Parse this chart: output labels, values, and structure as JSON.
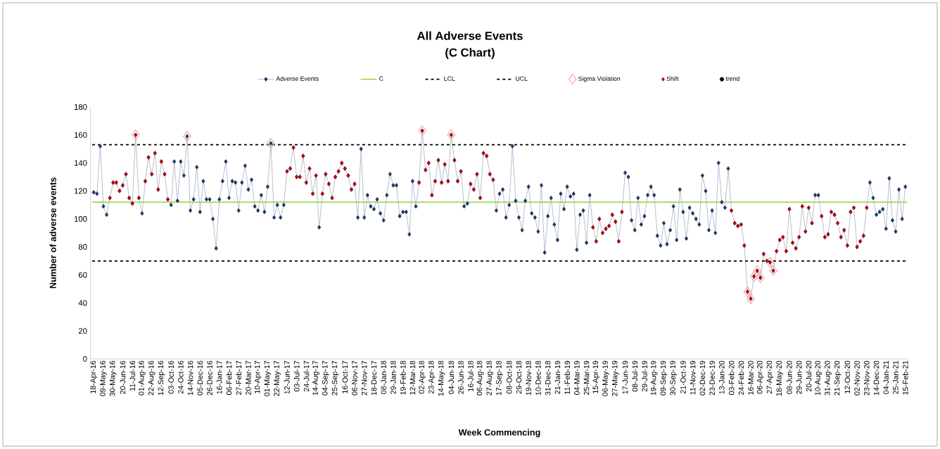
{
  "chart_data": {
    "type": "line",
    "title": "All Adverse Events",
    "subtitle": "(C Chart)",
    "xlabel": "Week Commencing",
    "ylabel": "Number of adverse events",
    "categories": [
      "18-Apr-16",
      null,
      null,
      "09-May-16",
      null,
      null,
      "30-May-16",
      null,
      null,
      "20-Jun-16",
      null,
      null,
      "11-Jul-16",
      null,
      null,
      "01-Aug-16",
      null,
      null,
      "22-Aug-16",
      null,
      null,
      "12-Sep-16",
      null,
      null,
      "03-Oct-16",
      null,
      null,
      "24-Oct-16",
      null,
      null,
      "14-Nov-16",
      null,
      null,
      "05-Dec-16",
      null,
      null,
      "26-Dec-16",
      null,
      null,
      "16-Jan-17",
      null,
      null,
      "06-Feb-17",
      null,
      null,
      "27-Feb-17",
      null,
      null,
      "20-Mar-17",
      null,
      null,
      "10-Apr-17",
      null,
      null,
      "01-May-17",
      null,
      null,
      "22-May-17",
      null,
      null,
      "12-Jun-17",
      null,
      null,
      "03-Jul-17",
      null,
      null,
      "24-Jul-17",
      null,
      null,
      "14-Aug-17",
      null,
      null,
      "04-Sep-17",
      null,
      null,
      "25-Sep-17",
      null,
      null,
      "16-Oct-17",
      null,
      null,
      "06-Nov-17",
      null,
      null,
      "27-Nov-17",
      null,
      null,
      "18-Dec-17",
      null,
      null,
      "08-Jan-18",
      null,
      null,
      "29-Jan-18",
      null,
      null,
      "19-Feb-18",
      null,
      null,
      "12-Mar-18",
      null,
      null,
      "02-Apr-18",
      null,
      null,
      "23-Apr-18",
      null,
      null,
      "14-May-18",
      null,
      null,
      "04-Jun-18",
      null,
      null,
      "26-Jun-18",
      null,
      null,
      "16-Jul-18",
      null,
      null,
      "06-Aug-18",
      null,
      null,
      "27-Aug-18",
      null,
      null,
      "17-Sep-18",
      null,
      null,
      "08-Oct-18",
      null,
      null,
      "29-Oct-18",
      null,
      null,
      "19-Nov-18",
      null,
      null,
      "10-Dec-18",
      null,
      null,
      "31-Dec-18",
      null,
      null,
      "21-Jan-19",
      null,
      null,
      "11-Feb-19",
      null,
      null,
      "04-Mar-19",
      null,
      null,
      "25-Mar-19",
      null,
      null,
      "15-Apr-19",
      null,
      null,
      "06-May-19",
      null,
      null,
      "27-May-19",
      null,
      null,
      "17-Jun-19",
      null,
      null,
      "08-Jul-19",
      null,
      null,
      "29-Jul-19",
      null,
      null,
      "19-Aug-19",
      null,
      null,
      "09-Sep-19",
      null,
      null,
      "30-Sep-19",
      null,
      null,
      "21-Oct-19",
      null,
      null,
      "11-Nov-19",
      null,
      null,
      "02-Dec-19",
      null,
      null,
      "23-Dec-19",
      null,
      null,
      "13-Jan-20",
      null,
      null,
      "03-Feb-20",
      null,
      null,
      "24-Feb-20",
      null,
      null,
      "16-Mar-20",
      null,
      null,
      "06-Apr-20",
      null,
      null,
      "27-Apr-20",
      null,
      null,
      "18-May-20",
      null,
      null,
      "08-Jun-20",
      null,
      null,
      "29-Jun-20",
      null,
      null,
      "20-Jul-20",
      null,
      null,
      "10-Aug-20",
      null,
      null,
      "31-Aug-20",
      null,
      null,
      "21-Sep-20",
      null,
      null,
      "12-Oct-20",
      null,
      null,
      "02-Nov-20",
      null,
      null,
      "23-Nov-20",
      null,
      null,
      "14-Dec-20",
      null,
      null,
      "04-Jan-21",
      null,
      null,
      "25-Jan-21",
      null,
      null,
      "15-Feb-21"
    ],
    "series": [
      {
        "name": "Adverse Events",
        "marker": "diamond",
        "color": "#1f3864",
        "values": [
          119,
          118,
          152,
          109,
          103,
          115,
          126,
          126,
          120,
          124,
          132,
          115,
          111,
          160,
          115,
          104,
          127,
          144,
          132,
          147,
          121,
          141,
          132,
          114,
          110,
          141,
          113,
          141,
          131,
          159,
          106,
          114,
          137,
          105,
          127,
          114,
          114,
          100,
          79,
          114,
          127,
          141,
          115,
          127,
          126,
          106,
          126,
          138,
          121,
          128,
          109,
          106,
          117,
          105,
          123,
          154,
          101,
          110,
          101,
          110,
          134,
          136,
          151,
          130,
          130,
          145,
          126,
          136,
          118,
          131,
          94,
          118,
          132,
          125,
          115,
          130,
          134,
          140,
          136,
          131,
          121,
          125,
          101,
          150,
          101,
          117,
          109,
          107,
          114,
          104,
          99,
          117,
          132,
          124,
          124,
          102,
          105,
          105,
          89,
          127,
          109,
          126,
          163,
          135,
          140,
          117,
          127,
          142,
          126,
          139,
          127,
          160,
          142,
          127,
          134,
          109,
          111,
          125,
          121,
          132,
          115,
          147,
          145,
          132,
          128,
          106,
          118,
          121,
          101,
          110,
          152,
          113,
          101,
          92,
          113,
          123,
          104,
          101,
          91,
          124,
          76,
          102,
          115,
          96,
          85,
          118,
          107,
          123,
          116,
          118,
          78,
          103,
          106,
          83,
          117,
          94,
          84,
          100,
          90,
          93,
          95,
          103,
          98,
          84,
          105,
          133,
          130,
          99,
          92,
          115,
          96,
          102,
          117,
          123,
          117,
          88,
          81,
          97,
          82,
          92,
          109,
          85,
          121,
          105,
          86,
          108,
          104,
          100,
          96,
          131,
          120,
          92,
          106,
          90,
          140,
          112,
          108,
          136,
          106,
          97,
          95,
          96,
          81,
          48,
          43,
          59,
          63,
          58,
          75,
          70,
          69,
          63,
          77,
          85,
          87,
          77,
          107,
          83,
          79,
          87,
          109,
          91,
          108,
          97,
          117,
          117,
          102,
          87,
          89,
          105,
          103,
          97,
          87,
          92,
          81,
          105,
          108,
          80,
          84,
          88,
          108,
          126,
          115,
          103,
          105,
          107,
          93,
          129,
          99,
          91,
          121,
          100,
          123
        ]
      },
      {
        "name": "Sigma Violation",
        "type": "scatter",
        "marker": "diamond",
        "color": "#f2a6a6",
        "values": [
          null,
          null,
          null,
          null,
          null,
          null,
          null,
          null,
          null,
          null,
          null,
          null,
          null,
          160,
          null,
          null,
          null,
          null,
          null,
          null,
          null,
          null,
          null,
          null,
          null,
          null,
          null,
          null,
          null,
          159,
          null,
          null,
          null,
          null,
          null,
          null,
          null,
          null,
          null,
          null,
          null,
          null,
          null,
          null,
          null,
          null,
          null,
          null,
          null,
          null,
          null,
          null,
          null,
          null,
          null,
          154,
          null,
          null,
          null,
          null,
          null,
          null,
          null,
          null,
          null,
          null,
          null,
          null,
          null,
          null,
          null,
          null,
          null,
          null,
          null,
          null,
          null,
          null,
          null,
          null,
          null,
          null,
          null,
          null,
          null,
          null,
          null,
          null,
          null,
          null,
          null,
          null,
          null,
          null,
          null,
          null,
          null,
          null,
          null,
          null,
          null,
          null,
          163,
          null,
          null,
          null,
          null,
          null,
          null,
          null,
          null,
          160,
          null,
          null,
          null,
          null,
          null,
          null,
          null,
          null,
          null,
          null,
          null,
          null,
          null,
          null,
          null,
          null,
          null,
          null,
          null,
          null,
          null,
          null,
          null,
          null,
          null,
          null,
          null,
          null,
          null,
          null,
          null,
          null,
          null,
          null,
          null,
          null,
          null,
          null,
          null,
          null,
          null,
          null,
          null,
          null,
          null,
          null,
          null,
          null,
          null,
          null,
          null,
          null,
          null,
          null,
          null,
          null,
          null,
          null,
          null,
          null,
          null,
          null,
          null,
          null,
          null,
          null,
          null,
          null,
          null,
          null,
          null,
          null,
          null,
          null,
          null,
          null,
          null,
          null,
          null,
          null,
          null,
          null,
          null,
          null,
          null,
          null,
          null,
          null,
          null,
          null,
          null,
          48,
          43,
          59,
          63,
          58,
          null,
          null,
          69,
          63,
          null,
          null,
          null,
          null,
          null,
          null,
          null,
          null,
          null,
          null,
          null,
          null,
          null,
          null,
          null,
          null,
          null,
          null,
          null,
          null,
          null,
          null,
          null,
          null,
          null,
          null,
          null,
          null,
          null,
          null,
          null,
          null,
          null,
          null,
          null,
          null,
          null,
          null,
          null,
          null,
          null
        ]
      },
      {
        "name": "Shift",
        "type": "scatter",
        "marker": "diamond",
        "color": "#c00000",
        "values": [
          null,
          null,
          null,
          null,
          null,
          115,
          126,
          126,
          120,
          124,
          132,
          115,
          111,
          160,
          115,
          null,
          127,
          144,
          132,
          147,
          121,
          141,
          132,
          114,
          null,
          null,
          null,
          null,
          null,
          null,
          null,
          null,
          null,
          null,
          null,
          null,
          null,
          null,
          null,
          null,
          null,
          null,
          null,
          null,
          null,
          null,
          null,
          null,
          null,
          null,
          null,
          null,
          null,
          null,
          null,
          null,
          null,
          null,
          null,
          null,
          134,
          136,
          151,
          130,
          130,
          145,
          126,
          136,
          118,
          131,
          null,
          118,
          132,
          125,
          115,
          130,
          134,
          140,
          136,
          131,
          121,
          125,
          null,
          null,
          null,
          null,
          null,
          null,
          null,
          null,
          null,
          null,
          null,
          null,
          null,
          null,
          null,
          null,
          null,
          null,
          null,
          126,
          163,
          135,
          140,
          117,
          127,
          142,
          126,
          139,
          127,
          160,
          142,
          127,
          134,
          null,
          null,
          125,
          121,
          132,
          115,
          147,
          145,
          132,
          128,
          null,
          null,
          null,
          null,
          null,
          null,
          null,
          null,
          null,
          null,
          null,
          null,
          null,
          null,
          null,
          null,
          null,
          null,
          null,
          null,
          null,
          null,
          null,
          null,
          null,
          null,
          null,
          null,
          null,
          null,
          94,
          84,
          100,
          90,
          93,
          95,
          103,
          98,
          84,
          105,
          null,
          null,
          null,
          null,
          null,
          null,
          null,
          null,
          null,
          null,
          null,
          null,
          null,
          null,
          null,
          null,
          null,
          null,
          null,
          null,
          null,
          null,
          null,
          null,
          null,
          null,
          null,
          null,
          null,
          null,
          null,
          null,
          null,
          106,
          97,
          95,
          96,
          81,
          48,
          43,
          59,
          63,
          58,
          75,
          70,
          69,
          63,
          77,
          85,
          87,
          77,
          107,
          83,
          79,
          87,
          109,
          91,
          108,
          97,
          null,
          null,
          102,
          87,
          89,
          105,
          103,
          97,
          87,
          92,
          81,
          105,
          108,
          80,
          84,
          88,
          108,
          null,
          null,
          null,
          null,
          null,
          null,
          null,
          null,
          null,
          null,
          null,
          null
        ]
      },
      {
        "name": "trend",
        "type": "scatter",
        "marker": "circle",
        "color": "#000000",
        "values": [
          null,
          null,
          null,
          null,
          null,
          null,
          null,
          null,
          null,
          null,
          null,
          null,
          null,
          null,
          null,
          null,
          null,
          null,
          null,
          null,
          null,
          null,
          null,
          null,
          null,
          null,
          null,
          null,
          null,
          null,
          null,
          null,
          null,
          null,
          null,
          null,
          null,
          null,
          null,
          null,
          null,
          null,
          null,
          null,
          null,
          null,
          null,
          null,
          null,
          null,
          null,
          null,
          null,
          null,
          null,
          null,
          null,
          null,
          null,
          null,
          null,
          null,
          null,
          null,
          null,
          null,
          null,
          null,
          null,
          null,
          null,
          null,
          null,
          null,
          null,
          null,
          null,
          null,
          null,
          null,
          null,
          null,
          null,
          null,
          null,
          null,
          null,
          null,
          null,
          null,
          null,
          null,
          null,
          null,
          null,
          null,
          null,
          null,
          null,
          null,
          null,
          null,
          null,
          null,
          null,
          null,
          null,
          null,
          null,
          null,
          null,
          null,
          null,
          null,
          null,
          null,
          null,
          null,
          null,
          null,
          null,
          null,
          null,
          null,
          null,
          null,
          null,
          null,
          null,
          null,
          null,
          null,
          null,
          null,
          null,
          null,
          null,
          null,
          null,
          null,
          null,
          null,
          null,
          null,
          null,
          null,
          null,
          null,
          null,
          null,
          null,
          null,
          null,
          null,
          null,
          null,
          null,
          null,
          null,
          null,
          null,
          null,
          null,
          null,
          null,
          null,
          null,
          null,
          null,
          null,
          null,
          null,
          null,
          null,
          null,
          null,
          null,
          null,
          null,
          null,
          null,
          null,
          null,
          null,
          null,
          null,
          null,
          null,
          null,
          null,
          null,
          null,
          null,
          null,
          null,
          null,
          null,
          null,
          null,
          null,
          null,
          null,
          null,
          null,
          null,
          null,
          null,
          null,
          null,
          null,
          null,
          null,
          null,
          null,
          null,
          null,
          null,
          null,
          null,
          null,
          null,
          null,
          null,
          null,
          null,
          null,
          null,
          null,
          null,
          null,
          null,
          null,
          null,
          null,
          null,
          null,
          null,
          null,
          null,
          null,
          null,
          null,
          null,
          null,
          null,
          null,
          null,
          null,
          null,
          null,
          null,
          null,
          null
        ]
      }
    ],
    "ref_lines": [
      {
        "axis": "y",
        "value": 112,
        "label": "C",
        "color": "#92d050",
        "line_style": "solid"
      },
      {
        "axis": "y",
        "value": 70,
        "label": "LCL",
        "color": "#000000",
        "line_style": "dashed"
      },
      {
        "axis": "y",
        "value": 153,
        "label": "UCL",
        "color": "#000000",
        "line_style": "dashed"
      }
    ],
    "ylim": [
      0,
      180
    ],
    "yticks": [
      0,
      20,
      40,
      60,
      80,
      100,
      120,
      140,
      160,
      180
    ],
    "grid": false,
    "legend": "top"
  }
}
